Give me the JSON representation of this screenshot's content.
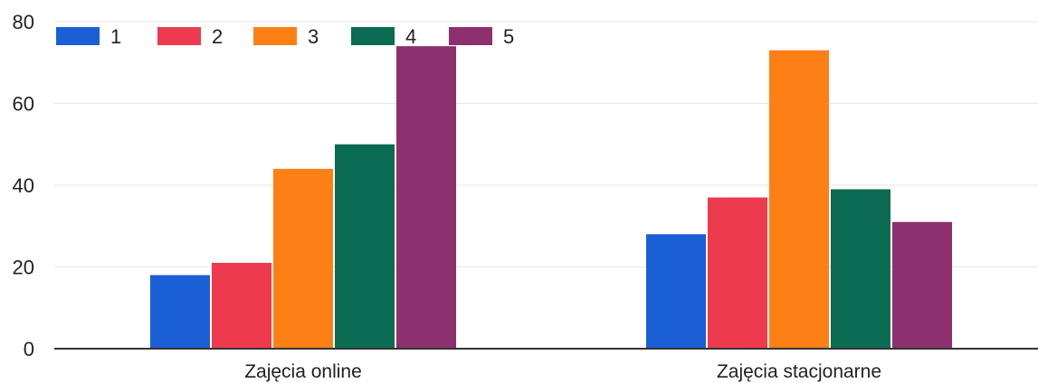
{
  "chart_data": {
    "type": "bar",
    "categories": [
      "Zajęcia online",
      "Zajęcia stacjonarne"
    ],
    "series": [
      {
        "name": "1",
        "color": "#1a5fd6",
        "values": [
          18,
          28
        ]
      },
      {
        "name": "2",
        "color": "#ee3a4f",
        "values": [
          21,
          37
        ]
      },
      {
        "name": "3",
        "color": "#ff7f17",
        "values": [
          44,
          73
        ]
      },
      {
        "name": "4",
        "color": "#0b6b53",
        "values": [
          50,
          39
        ]
      },
      {
        "name": "5",
        "color": "#8e2f6f",
        "values": [
          74,
          31
        ]
      }
    ],
    "yticks": [
      "0",
      "20",
      "40",
      "60",
      "80"
    ],
    "ylim": [
      0,
      80
    ],
    "grid": true,
    "legend_position": "top-left",
    "title": "",
    "xlabel": "",
    "ylabel": ""
  }
}
